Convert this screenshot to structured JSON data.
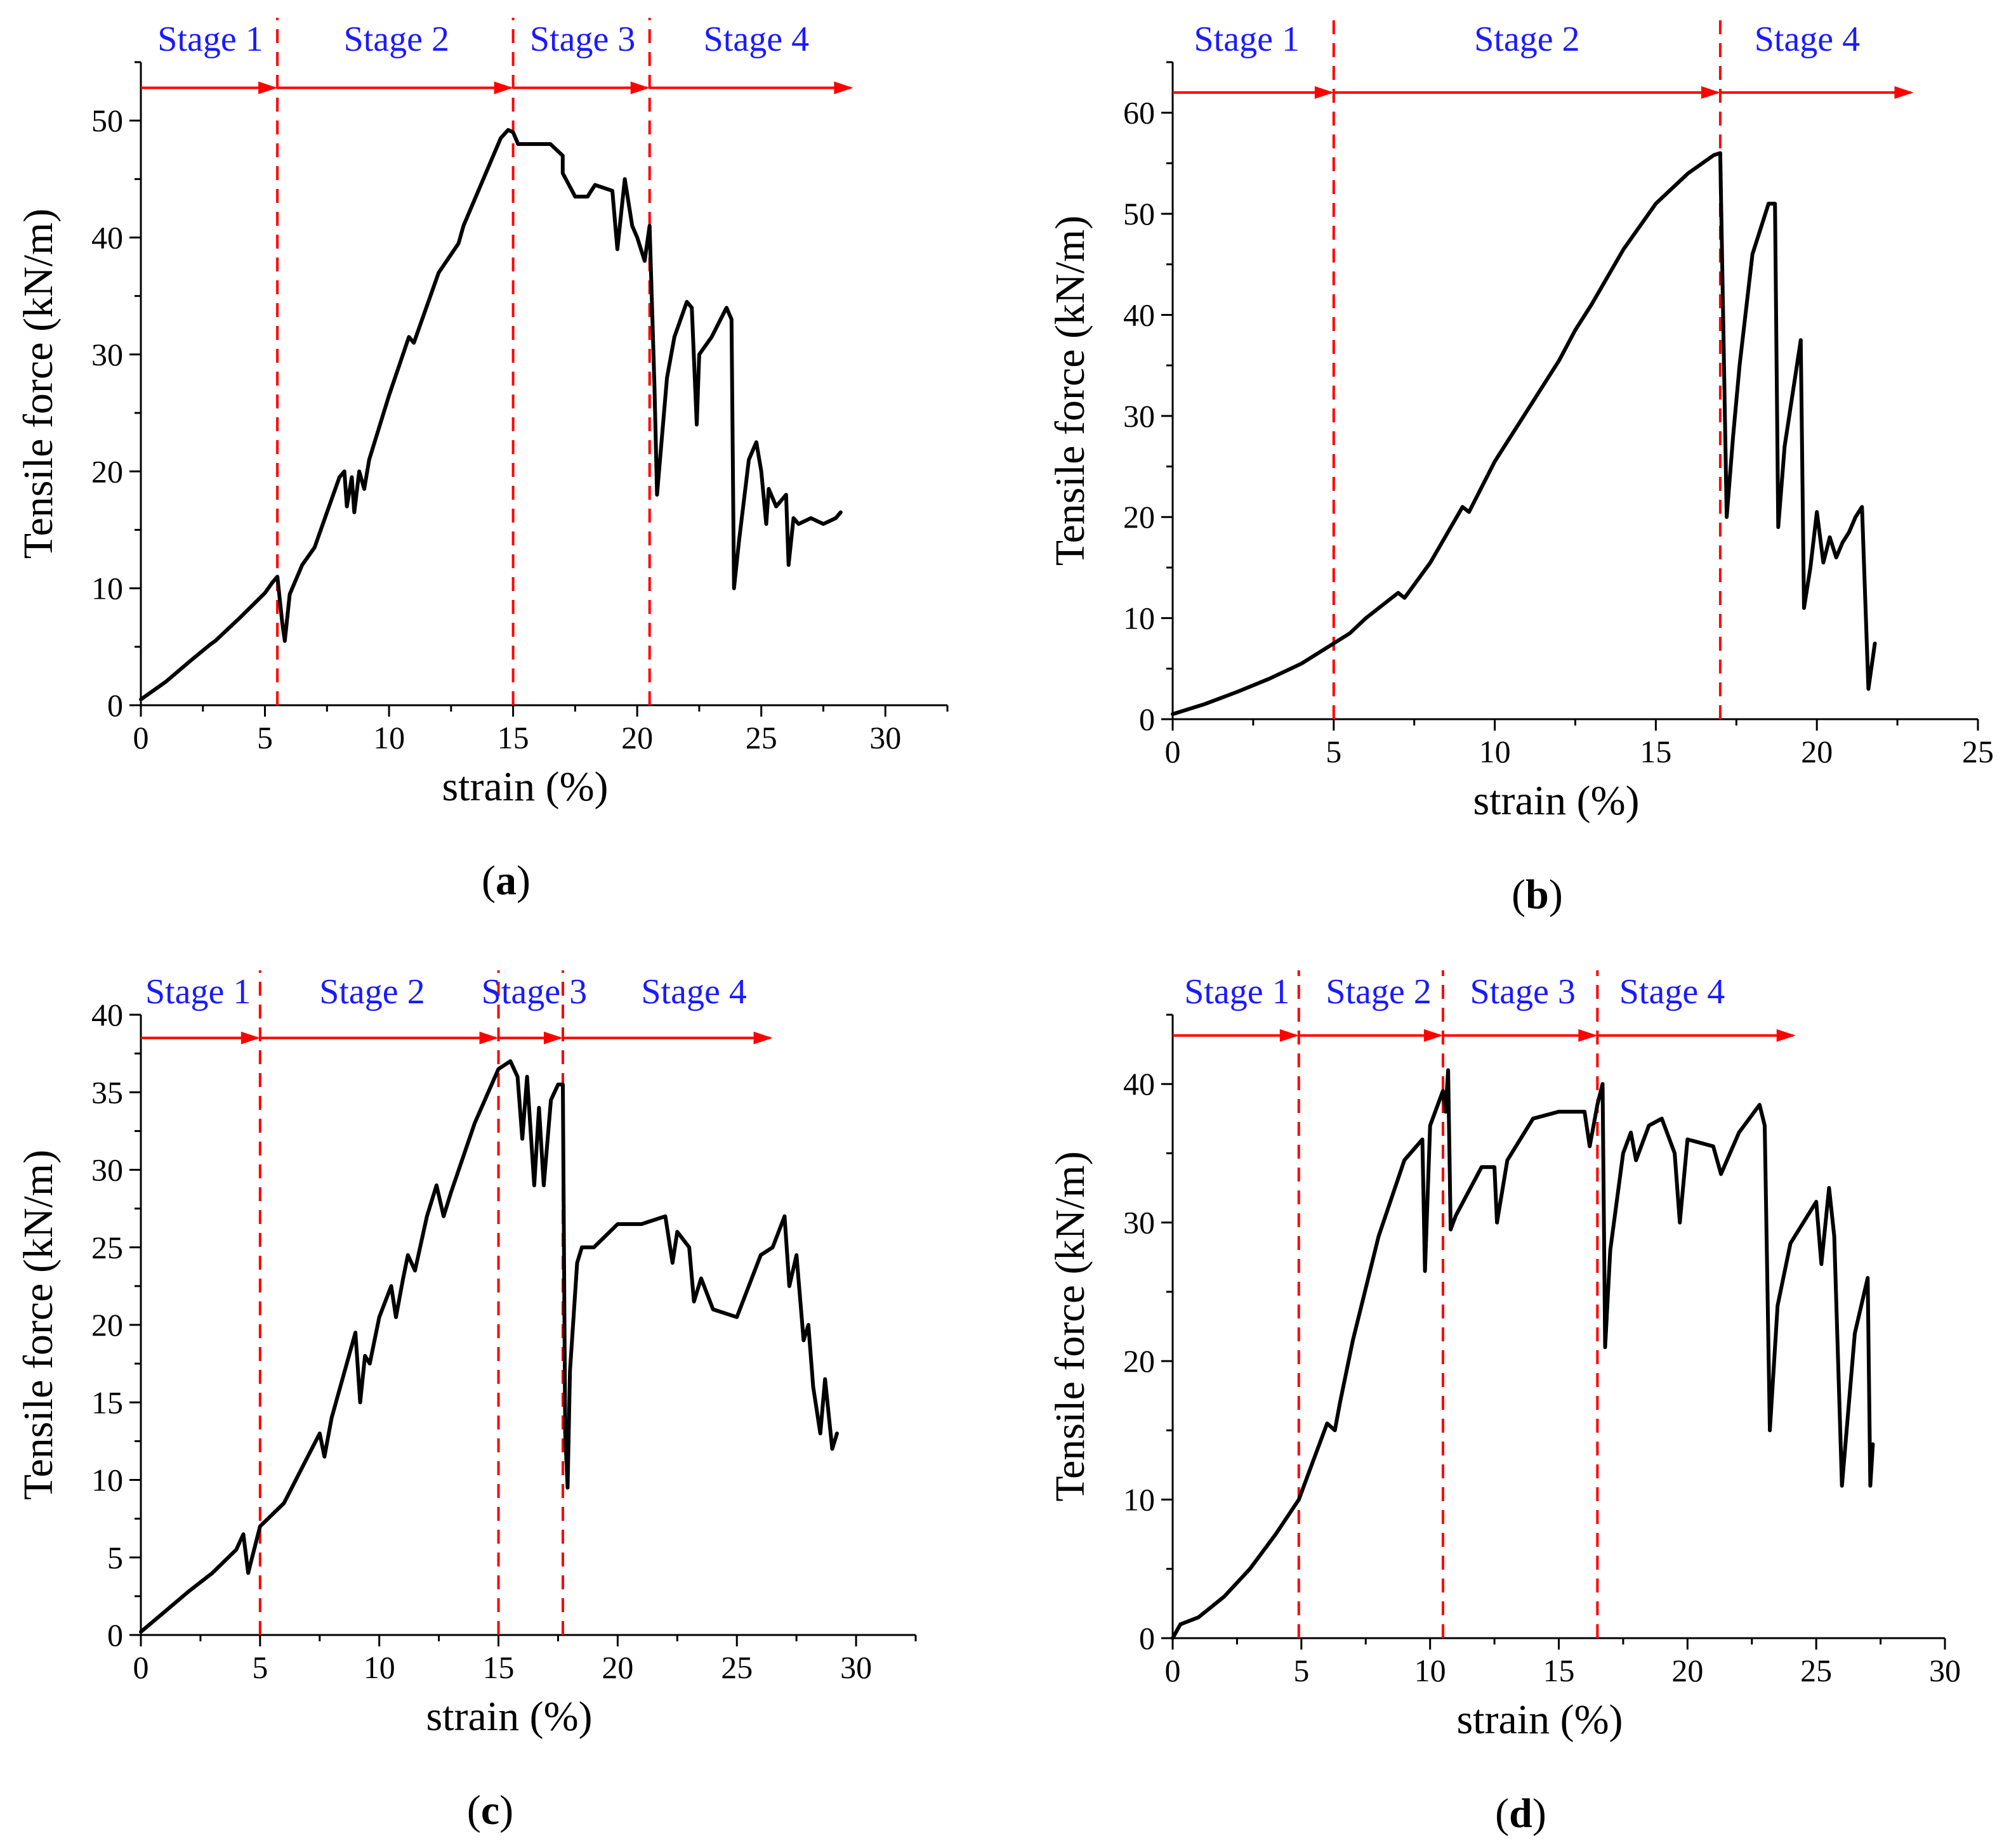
{
  "colors": {
    "stage_arrow": "#ff0000",
    "stage_divider": "#ff0000",
    "stage_label": "#1a1aff",
    "series": "#000000",
    "axis": "#000000"
  },
  "chart_data": [
    {
      "id": "a",
      "type": "line",
      "panel_label": {
        "open": "(",
        "letter": "a",
        "close": ")"
      },
      "xlabel": "strain (%)",
      "ylabel": "Tensile force (kN/m)",
      "xlim": [
        0,
        32.5
      ],
      "ylim": [
        0,
        55
      ],
      "xticks": [
        0,
        5,
        10,
        15,
        20,
        25,
        30
      ],
      "yticks": [
        0,
        10,
        20,
        30,
        40,
        50
      ],
      "stage_boundaries": [
        5.5,
        15.0,
        20.5
      ],
      "stages": [
        {
          "label": "Stage 1",
          "x": 2.8
        },
        {
          "label": "Stage 2",
          "x": 10.3
        },
        {
          "label": "Stage 3",
          "x": 17.8
        },
        {
          "label": "Stage 4",
          "x": 24.8
        }
      ],
      "arrow_end": 28.7,
      "arrow_y": 52.8,
      "series": [
        {
          "name": "tensile force",
          "x": [
            0,
            1,
            2,
            2.8,
            3,
            4,
            5,
            5.3,
            5.5,
            5.7,
            5.8,
            6,
            6.5,
            7,
            7.5,
            8,
            8.2,
            8.3,
            8.5,
            8.6,
            8.8,
            9,
            9.2,
            10,
            10.8,
            11,
            12,
            12.8,
            13,
            14,
            14.5,
            14.8,
            15,
            15.2,
            15.5,
            16,
            16.5,
            17,
            17,
            17.5,
            18,
            18.3,
            19,
            19.2,
            19.5,
            19.8,
            20,
            20.3,
            20.5,
            20.7,
            20.8,
            21.2,
            21.5,
            22,
            22.2,
            22.4,
            22.5,
            23,
            23.6,
            23.8,
            23.9,
            24.1,
            24.5,
            24.8,
            25,
            25.2,
            25.3,
            25.6,
            26,
            26.1,
            26.3,
            26.5,
            27,
            27.5,
            28,
            28.2
          ],
          "y": [
            0.5,
            2,
            3.8,
            5.2,
            5.5,
            7.5,
            9.6,
            10.5,
            11,
            7,
            5.5,
            9.5,
            12,
            13.5,
            16.5,
            19.5,
            20,
            17,
            19.5,
            16.5,
            20,
            18.5,
            21,
            26.5,
            31.5,
            31,
            37,
            39.5,
            41,
            46,
            48.5,
            49.2,
            49,
            48,
            48,
            48,
            48,
            47,
            45.5,
            43.5,
            43.5,
            44.5,
            44,
            39,
            45,
            41,
            40,
            38,
            41,
            27,
            18,
            28,
            31.5,
            34.5,
            34,
            24,
            30,
            31.5,
            34,
            33,
            10,
            14,
            21,
            22.5,
            20,
            15.5,
            18.5,
            17,
            18,
            12,
            16,
            15.5,
            16,
            15.5,
            16,
            16.5
          ]
        }
      ]
    },
    {
      "id": "b",
      "type": "line",
      "panel_label": {
        "open": "(",
        "letter": "b",
        "close": ")"
      },
      "xlabel": "strain (%)",
      "ylabel": "Tensile force (kN/m)",
      "xlim": [
        0,
        25
      ],
      "ylim": [
        0,
        65
      ],
      "xticks": [
        0,
        5,
        10,
        15,
        20,
        25
      ],
      "yticks": [
        0,
        10,
        20,
        30,
        40,
        50,
        60
      ],
      "stage_boundaries": [
        5.0,
        17.0
      ],
      "stages": [
        {
          "label": "Stage 1",
          "x": 2.3
        },
        {
          "label": "Stage 2",
          "x": 11.0
        },
        {
          "label": "Stage 4",
          "x": 19.7
        }
      ],
      "arrow_end": 23.0,
      "arrow_y": 62.0,
      "series": [
        {
          "name": "tensile force",
          "x": [
            0,
            1,
            2,
            3,
            4,
            5,
            5.5,
            6,
            7,
            7.2,
            8,
            9,
            9.2,
            10,
            11,
            12,
            12.5,
            13,
            14,
            15,
            16,
            16.8,
            17,
            17.2,
            17.4,
            17.6,
            18,
            18.5,
            18.7,
            18.8,
            19,
            19.5,
            19.6,
            19.8,
            20,
            20.2,
            20.4,
            20.6,
            20.8,
            21,
            21.2,
            21.4,
            21.6,
            21.8
          ],
          "y": [
            0.5,
            1.5,
            2.7,
            4,
            5.5,
            7.5,
            8.5,
            10,
            12.5,
            12,
            15.5,
            21,
            20.5,
            25.5,
            30.5,
            35.5,
            38.5,
            41,
            46.5,
            51,
            54,
            55.8,
            56,
            20,
            28,
            35,
            46,
            51,
            51,
            19,
            27,
            37.5,
            11,
            15,
            20.5,
            15.5,
            18,
            16,
            17.5,
            18.5,
            20,
            21,
            3,
            7.5
          ]
        }
      ]
    },
    {
      "id": "c",
      "type": "line",
      "panel_label": {
        "open": "(",
        "letter": "c",
        "close": ")"
      },
      "xlabel": "strain (%)",
      "ylabel": "Tensile force (kN/m)",
      "xlim": [
        0,
        32.5
      ],
      "ylim": [
        0,
        40
      ],
      "xticks": [
        0,
        5,
        10,
        15,
        20,
        25,
        30
      ],
      "yticks": [
        0,
        5,
        10,
        15,
        20,
        25,
        30,
        35,
        40
      ],
      "stage_boundaries": [
        5.0,
        15.0,
        17.7
      ],
      "stages": [
        {
          "label": "Stage 1",
          "x": 2.4
        },
        {
          "label": "Stage 2",
          "x": 9.7
        },
        {
          "label": "Stage 3",
          "x": 16.5
        },
        {
          "label": "Stage 4",
          "x": 23.2
        }
      ],
      "arrow_end": 26.5,
      "arrow_y": 38.5,
      "series": [
        {
          "name": "tensile force",
          "x": [
            0,
            1,
            2,
            3,
            4,
            4.3,
            4.5,
            5,
            6,
            7,
            7.5,
            7.7,
            8,
            9,
            9.2,
            9.4,
            9.6,
            10,
            10.5,
            10.7,
            11,
            11.2,
            11.5,
            12,
            12.4,
            12.7,
            13,
            14,
            15,
            15.5,
            15.8,
            16,
            16.2,
            16.5,
            16.7,
            16.9,
            17.2,
            17.5,
            17.7,
            17.8,
            17.9,
            18,
            18.3,
            18.5,
            19,
            20,
            21,
            22,
            22.3,
            22.5,
            23,
            23.2,
            23.5,
            24,
            25,
            26,
            26.5,
            27,
            27.2,
            27.5,
            27.8,
            28,
            28.2,
            28.5,
            28.7,
            29,
            29.2
          ],
          "y": [
            0.2,
            1.5,
            2.8,
            4,
            5.5,
            6.5,
            4,
            7,
            8.5,
            11.5,
            13,
            11.5,
            14,
            19.5,
            15,
            18,
            17.5,
            20.5,
            22.5,
            20.5,
            23,
            24.5,
            23.5,
            27,
            29,
            27,
            28.5,
            33,
            36.5,
            37,
            36,
            32,
            36,
            29,
            34,
            29,
            34.5,
            35.5,
            35.5,
            13,
            9.5,
            17,
            24,
            25,
            25,
            26.5,
            26.5,
            27,
            24,
            26,
            25,
            21.5,
            23,
            21,
            20.5,
            24.5,
            25,
            27,
            22.5,
            24.5,
            19,
            20,
            16,
            13,
            16.5,
            12,
            13
          ]
        }
      ]
    },
    {
      "id": "d",
      "type": "line",
      "panel_label": {
        "open": "(",
        "letter": "d",
        "close": ")"
      },
      "xlabel": "strain (%)",
      "ylabel": "Tensile force (kN/m)",
      "xlim": [
        0,
        30
      ],
      "ylim": [
        0,
        45
      ],
      "xticks": [
        0,
        5,
        10,
        15,
        20,
        25,
        30
      ],
      "yticks": [
        0,
        10,
        20,
        30,
        40
      ],
      "stage_boundaries": [
        4.9,
        10.5,
        16.5
      ],
      "stages": [
        {
          "label": "Stage 1",
          "x": 2.5
        },
        {
          "label": "Stage 2",
          "x": 8.0
        },
        {
          "label": "Stage 3",
          "x": 13.6
        },
        {
          "label": "Stage 4",
          "x": 19.4
        }
      ],
      "arrow_end": 24.2,
      "arrow_y": 43.5,
      "series": [
        {
          "name": "tensile force",
          "x": [
            0,
            0.3,
            1,
            2,
            3,
            4,
            4.9,
            5.5,
            6,
            6.3,
            6.5,
            7,
            8,
            9,
            9.7,
            9.8,
            10,
            10.5,
            10.6,
            10.7,
            10.8,
            11,
            12,
            12.5,
            12.6,
            13,
            14,
            15,
            16,
            16.2,
            16.5,
            16.7,
            16.8,
            17,
            17.5,
            17.8,
            18,
            18.5,
            19,
            19.5,
            19.7,
            20,
            21,
            21.3,
            22,
            22.8,
            23,
            23.2,
            23.5,
            24,
            24.5,
            25,
            25.2,
            25.5,
            25.7,
            26,
            26.5,
            27,
            27.1,
            27.2
          ],
          "y": [
            0,
            1,
            1.5,
            3,
            5,
            7.5,
            10,
            13,
            15.5,
            15,
            17,
            21.5,
            29,
            34.5,
            36,
            26.5,
            37,
            39.5,
            38,
            41,
            29.5,
            30.5,
            34,
            34,
            30,
            34.5,
            37.5,
            38,
            38,
            35.5,
            38.5,
            40,
            21,
            28,
            35,
            36.5,
            34.5,
            37,
            37.5,
            35,
            30,
            36,
            35.5,
            33.5,
            36.5,
            38.5,
            37,
            15,
            24,
            28.5,
            30,
            31.5,
            27,
            32.5,
            29,
            11,
            22,
            26,
            11,
            14
          ]
        }
      ]
    }
  ]
}
